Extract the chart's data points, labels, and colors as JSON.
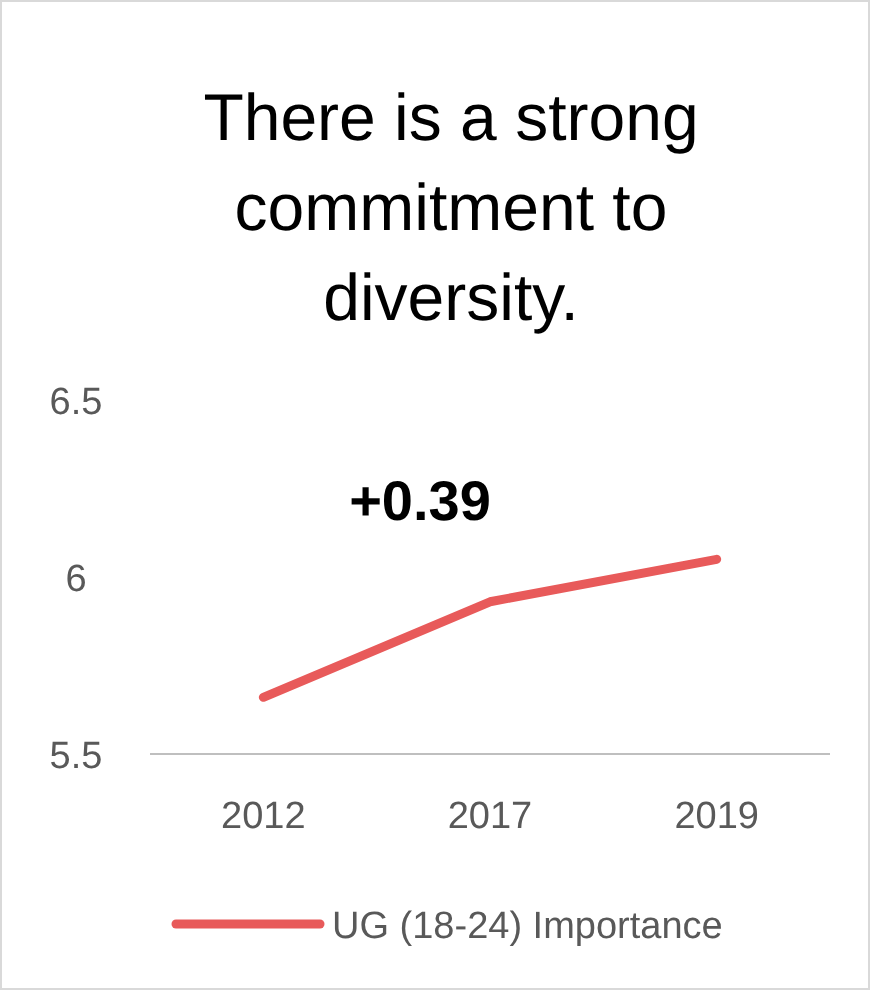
{
  "chart_data": {
    "type": "line",
    "title": "There is a strong commitment to diversity.",
    "categories": [
      "2012",
      "2017",
      "2019"
    ],
    "series": [
      {
        "name": "UG (18-24) Importance",
        "color": "#e85a5a",
        "values": [
          5.66,
          5.93,
          6.05
        ]
      }
    ],
    "ylim": [
      5.5,
      6.5
    ],
    "yticks": [
      5.5,
      6,
      6.5
    ],
    "annotations": [
      "+0.39"
    ],
    "legend": "bottom",
    "grid": false,
    "marker": "none"
  }
}
